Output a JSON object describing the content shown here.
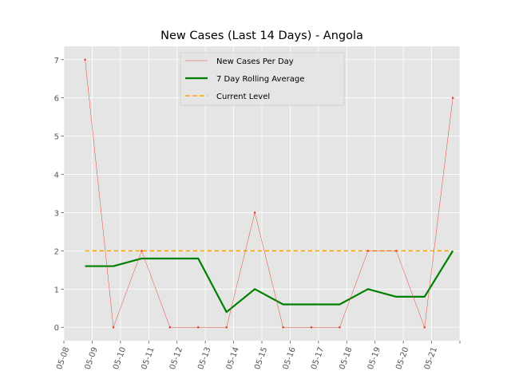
{
  "chart_data": {
    "type": "line",
    "title": "New Cases (Last 14 Days) - Angola",
    "xlabel": "",
    "ylabel": "",
    "x_tick_labels": [
      "05-08",
      "05-09",
      "05-10",
      "05-11",
      "05-12",
      "05-13",
      "05-14",
      "05-15",
      "05-16",
      "05-17",
      "05-18",
      "05-19",
      "05-20",
      "05-21"
    ],
    "x_tick_values": [
      "2020-05-08",
      "2020-05-09",
      "2020-05-10",
      "2020-05-11",
      "2020-05-12",
      "2020-05-13",
      "2020-05-14",
      "2020-05-15",
      "2020-05-16",
      "2020-05-17",
      "2020-05-18",
      "2020-05-19",
      "2020-05-20",
      "2020-05-21",
      "2020-05-22"
    ],
    "x": [
      "2020-05-08T18:00",
      "2020-05-09T18:00",
      "2020-05-10T18:00",
      "2020-05-11T18:00",
      "2020-05-12T18:00",
      "2020-05-13T18:00",
      "2020-05-14T18:00",
      "2020-05-15T18:00",
      "2020-05-16T18:00",
      "2020-05-17T18:00",
      "2020-05-18T18:00",
      "2020-05-19T18:00",
      "2020-05-20T18:00",
      "2020-05-21T18:00"
    ],
    "xlim": [
      "2020-05-08",
      "2020-05-22"
    ],
    "ylim": [
      -0.35,
      7.35
    ],
    "y_ticks": [
      0,
      1,
      2,
      3,
      4,
      5,
      6,
      7
    ],
    "grid": true,
    "legend_position": "top-center",
    "series": [
      {
        "name": "New Cases Per Day",
        "style": "thin-line-with-markers",
        "color": "#e24a33",
        "values": [
          7,
          0,
          2,
          0,
          0,
          0,
          3,
          0,
          0,
          0,
          2,
          2,
          0,
          6
        ]
      },
      {
        "name": "7 Day Rolling Average",
        "style": "thick-line",
        "color": "#008000",
        "values": [
          1.6,
          1.6,
          1.8,
          1.8,
          1.8,
          0.4,
          1.0,
          0.6,
          0.6,
          0.6,
          1.0,
          0.8,
          0.8,
          2.0
        ]
      },
      {
        "name": "Current Level",
        "style": "dashed-line",
        "color": "#ffa500",
        "values": [
          2,
          2,
          2,
          2,
          2,
          2,
          2,
          2,
          2,
          2,
          2,
          2,
          2,
          2
        ]
      }
    ]
  },
  "colors": {
    "plot_background": "#e5e5e5",
    "grid": "#ffffff",
    "tick_text": "#555555",
    "legend_background": "#e5e5e5",
    "legend_border": "#cccccc"
  }
}
